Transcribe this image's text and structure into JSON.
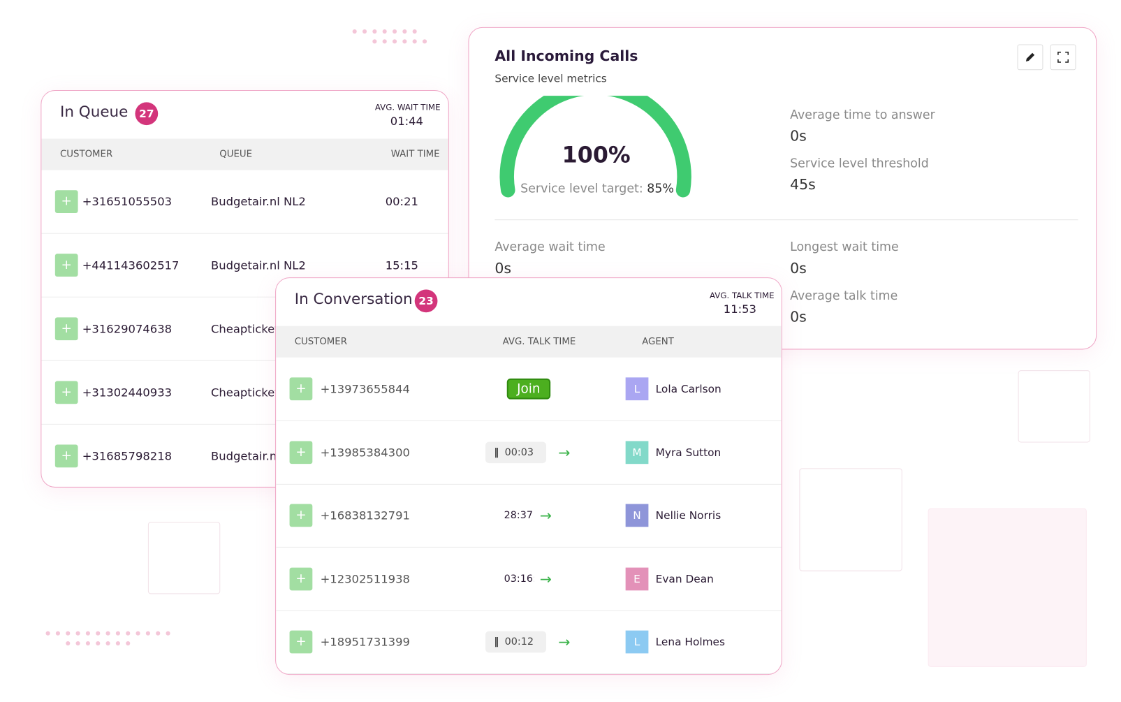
{
  "queue": {
    "title": "In Queue",
    "count": "27",
    "avg_label": "AVG. WAIT TIME",
    "avg_value": "01:44",
    "headers": [
      "CUSTOMER",
      "QUEUE",
      "WAIT TIME"
    ],
    "rows": [
      [
        "+31651055503",
        "Budgetair.nl NL2",
        "00:21"
      ],
      [
        "+441143602517",
        "Budgetair.nl NL2",
        "15:15"
      ],
      [
        "+31629074638",
        "Cheapticket",
        ""
      ],
      [
        "+31302440933",
        "Cheapticket",
        ""
      ],
      [
        "+31685798218",
        "Budgetair.nl",
        ""
      ]
    ]
  },
  "metrics": {
    "title": "All Incoming Calls",
    "subtitle": "Service level metrics",
    "gauge_value": "100%",
    "gauge_target_label": "Service level target:",
    "gauge_target": "85%",
    "items": [
      {
        "label": "Average time to answer",
        "value": "0s"
      },
      {
        "label": "Service level threshold",
        "value": "45s"
      },
      {
        "label": "Average wait time",
        "value": "0s"
      },
      {
        "label": "Longest wait time",
        "value": "0s"
      },
      {
        "label": "Average talk time",
        "value": "0s"
      }
    ]
  },
  "conversation": {
    "title": "In Conversation",
    "count": "23",
    "avg_label": "AVG. TALK TIME",
    "avg_value": "11:53",
    "headers": [
      "CUSTOMER",
      "AVG. TALK TIME",
      "AGENT"
    ],
    "rows": [
      {
        "phone": "+13973655844",
        "talk": "Join",
        "style": "join",
        "initial": "L",
        "agent": "Lola Carlson",
        "color": "#aaa6f2"
      },
      {
        "phone": "+13985384300",
        "talk": "00:03",
        "style": "paused",
        "initial": "M",
        "agent": "Myra Sutton",
        "color": "#82d9c9"
      },
      {
        "phone": "+16838132791",
        "talk": "28:37",
        "style": "running",
        "initial": "N",
        "agent": "Nellie Norris",
        "color": "#8e95d9"
      },
      {
        "phone": "+12302511938",
        "talk": "03:16:(",
        "style": "running",
        "initial": "E",
        "agent": "Evan Dean",
        "color": "#e391b8"
      },
      {
        "phone": "+18951731399",
        "talk": "00:12",
        "style": "paused",
        "initial": "L",
        "agent": "Lena Holmes",
        "color": "#8ccaf2"
      }
    ]
  }
}
